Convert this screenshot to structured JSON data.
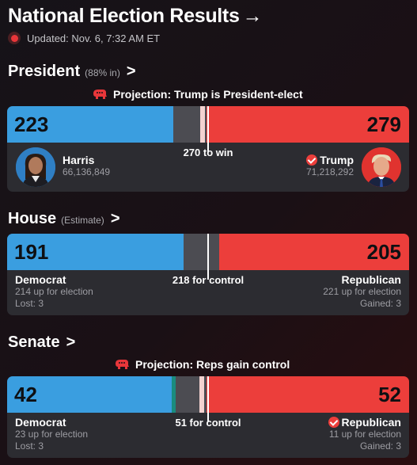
{
  "header": {
    "title": "National Election Results",
    "arrow": "→",
    "updated": "Updated: Nov. 6, 7:32 AM ET"
  },
  "president": {
    "heading": "President",
    "sub": "(88% in)",
    "chevron": ">",
    "projection": "Projection: Trump is President-elect",
    "dem_value": "223",
    "rep_value": "279",
    "threshold": "270 to win",
    "dem_name": "Harris",
    "dem_votes": "66,136,849",
    "rep_name": "Trump",
    "rep_votes": "71,218,292",
    "total_seats": 538,
    "win_at": 270,
    "colors": {
      "dem": "#3a9ee0",
      "rep": "#ec3e3b",
      "undecided": "#4c4c52"
    }
  },
  "house": {
    "heading": "House",
    "sub": "(Estimate)",
    "chevron": ">",
    "dem_value": "191",
    "rep_value": "205",
    "threshold": "218 for control",
    "dem_name": "Democrat",
    "dem_up": "214 up for election",
    "dem_lost": "Lost: 3",
    "rep_name": "Republican",
    "rep_up": "221 up for election",
    "rep_gained": "Gained: 3",
    "total_seats": 435,
    "win_at": 218
  },
  "senate": {
    "heading": "Senate",
    "chevron": ">",
    "projection": "Projection: Reps gain control",
    "dem_value": "42",
    "rep_value": "52",
    "threshold": "51 for control",
    "dem_name": "Democrat",
    "dem_up": "23 up for election",
    "dem_lost": "Lost: 3",
    "rep_name": "Republican",
    "rep_up": "11 up for election",
    "rep_gained": "Gained: 3",
    "total_seats": 100,
    "win_at": 51,
    "independent_seats": 1
  },
  "icons": {
    "live": "live-dot-icon",
    "gop": "republican-elephant-icon",
    "check": "checkmark-icon"
  }
}
